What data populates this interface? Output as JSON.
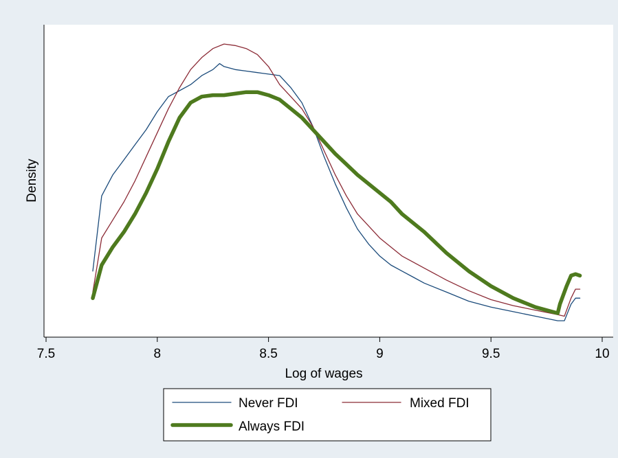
{
  "chart_data": {
    "type": "line",
    "title": "",
    "xlabel": "Log of wages",
    "ylabel": "Density",
    "xlim": [
      7.5,
      10
    ],
    "ylim": [
      0,
      1
    ],
    "x_ticks": [
      "7.5",
      "8",
      "8.5",
      "9",
      "9.5",
      "10"
    ],
    "y_ticks": [],
    "grid": false,
    "legend_position": "bottom",
    "series": [
      {
        "name": "Never FDI",
        "color": "#1a4a7a",
        "x": [
          7.71,
          7.75,
          7.8,
          7.85,
          7.9,
          7.95,
          8.0,
          8.05,
          8.1,
          8.15,
          8.2,
          8.25,
          8.28,
          8.3,
          8.35,
          8.4,
          8.45,
          8.5,
          8.55,
          8.6,
          8.65,
          8.7,
          8.75,
          8.8,
          8.85,
          8.9,
          8.95,
          9.0,
          9.05,
          9.1,
          9.15,
          9.2,
          9.3,
          9.4,
          9.5,
          9.6,
          9.7,
          9.8,
          9.83,
          9.86,
          9.88,
          9.9
        ],
        "values": [
          0.19,
          0.44,
          0.51,
          0.56,
          0.61,
          0.66,
          0.72,
          0.77,
          0.79,
          0.81,
          0.84,
          0.86,
          0.88,
          0.87,
          0.86,
          0.855,
          0.85,
          0.845,
          0.84,
          0.8,
          0.75,
          0.67,
          0.57,
          0.48,
          0.4,
          0.33,
          0.28,
          0.24,
          0.21,
          0.19,
          0.17,
          0.15,
          0.12,
          0.09,
          0.07,
          0.055,
          0.04,
          0.025,
          0.025,
          0.08,
          0.1,
          0.1
        ]
      },
      {
        "name": "Mixed FDI",
        "color": "#8b2a35",
        "x": [
          7.71,
          7.75,
          7.8,
          7.85,
          7.9,
          7.95,
          8.0,
          8.05,
          8.1,
          8.15,
          8.2,
          8.25,
          8.3,
          8.35,
          8.4,
          8.45,
          8.5,
          8.55,
          8.6,
          8.65,
          8.7,
          8.75,
          8.8,
          8.85,
          8.9,
          8.95,
          9.0,
          9.05,
          9.1,
          9.2,
          9.3,
          9.4,
          9.5,
          9.6,
          9.7,
          9.8,
          9.83,
          9.86,
          9.88,
          9.9
        ],
        "values": [
          0.12,
          0.3,
          0.36,
          0.42,
          0.49,
          0.57,
          0.65,
          0.73,
          0.8,
          0.86,
          0.9,
          0.93,
          0.945,
          0.94,
          0.93,
          0.91,
          0.87,
          0.81,
          0.77,
          0.73,
          0.67,
          0.59,
          0.51,
          0.44,
          0.38,
          0.34,
          0.3,
          0.27,
          0.24,
          0.2,
          0.16,
          0.125,
          0.095,
          0.075,
          0.06,
          0.045,
          0.04,
          0.1,
          0.13,
          0.13
        ]
      },
      {
        "name": "Always FDI",
        "color": "#4e7a1e",
        "x": [
          7.71,
          7.75,
          7.8,
          7.85,
          7.9,
          7.95,
          8.0,
          8.05,
          8.1,
          8.15,
          8.2,
          8.25,
          8.3,
          8.35,
          8.4,
          8.45,
          8.5,
          8.55,
          8.6,
          8.65,
          8.7,
          8.75,
          8.8,
          8.85,
          8.9,
          8.95,
          9.0,
          9.05,
          9.1,
          9.2,
          9.3,
          9.4,
          9.5,
          9.6,
          9.7,
          9.8,
          9.81,
          9.84,
          9.86,
          9.88,
          9.9
        ],
        "values": [
          0.1,
          0.21,
          0.27,
          0.32,
          0.38,
          0.45,
          0.53,
          0.62,
          0.7,
          0.75,
          0.77,
          0.775,
          0.775,
          0.78,
          0.785,
          0.785,
          0.775,
          0.76,
          0.73,
          0.7,
          0.66,
          0.62,
          0.58,
          0.545,
          0.51,
          0.48,
          0.45,
          0.42,
          0.38,
          0.32,
          0.25,
          0.19,
          0.14,
          0.1,
          0.07,
          0.05,
          0.08,
          0.14,
          0.175,
          0.18,
          0.175
        ]
      }
    ]
  }
}
